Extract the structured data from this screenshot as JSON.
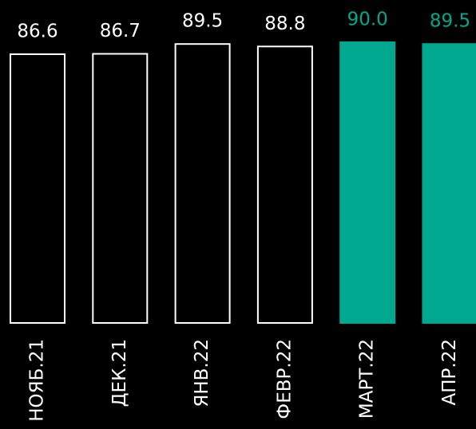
{
  "chart_data": {
    "type": "bar",
    "categories": [
      "НОЯБ.21",
      "ДЕК.21",
      "ЯНВ.22",
      "ФЕВР.22",
      "МАРТ.22",
      "АПР.22"
    ],
    "values": [
      86.6,
      86.7,
      89.5,
      88.8,
      90.0,
      89.5
    ],
    "value_labels": [
      "86.6",
      "86.7",
      "89.5",
      "88.8",
      "90.0",
      "89.5"
    ],
    "colors": [
      "#000000",
      "#000000",
      "#000000",
      "#000000",
      "#00a890",
      "#00a890"
    ],
    "edgecolors": [
      "#ffffff",
      "#ffffff",
      "#ffffff",
      "#ffffff",
      "#00a890",
      "#00a890"
    ],
    "ylim": [
      10,
      90
    ]
  }
}
